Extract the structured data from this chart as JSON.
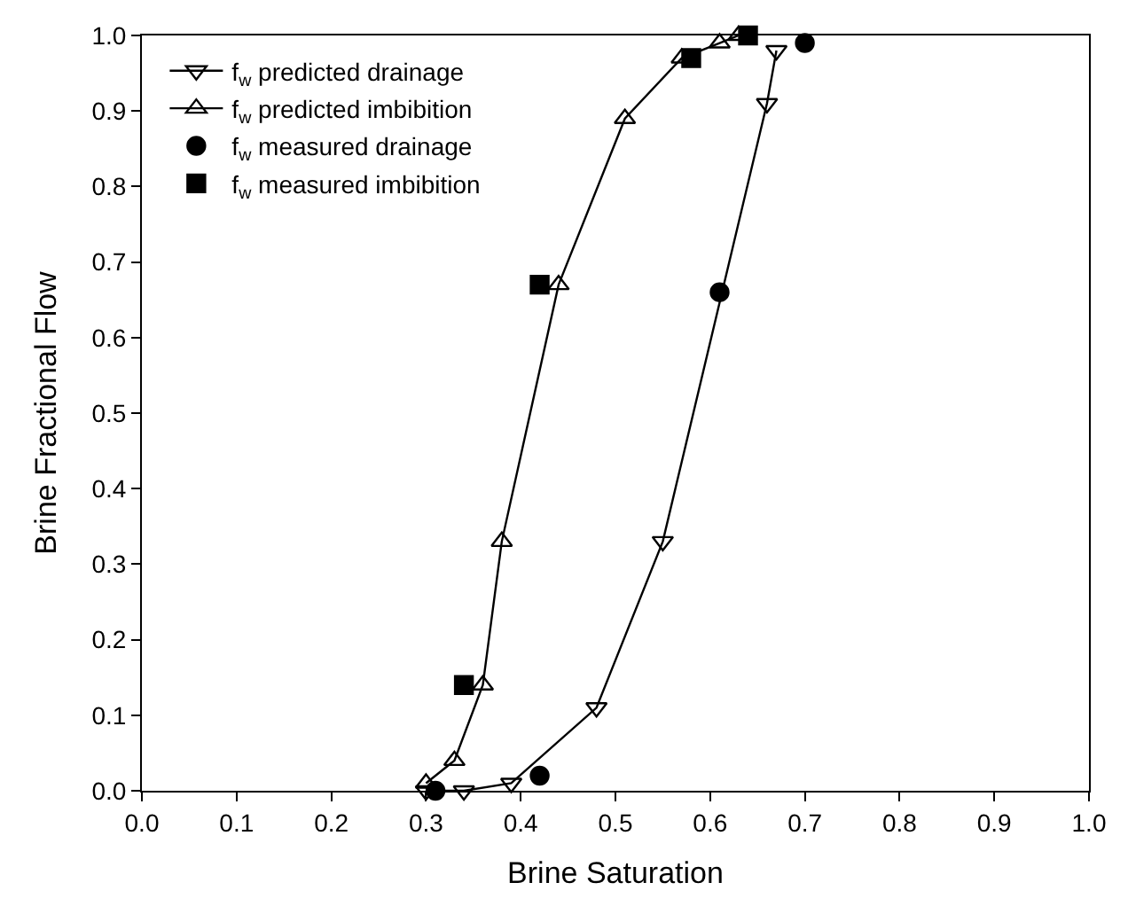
{
  "chart_data": {
    "type": "line",
    "xlabel": "Brine Saturation",
    "ylabel": "Brine Fractional Flow",
    "xlim": [
      0,
      1
    ],
    "ylim": [
      0,
      1
    ],
    "xticks": [
      {
        "value": 0,
        "label": "0.0"
      },
      0.1,
      0.2,
      0.3,
      0.4,
      0.5,
      0.6,
      0.7,
      0.8,
      0.9,
      {
        "value": 1,
        "label": "1.0"
      }
    ],
    "yticks": [
      {
        "value": 0,
        "label": "0.0"
      },
      0.1,
      0.2,
      0.3,
      0.4,
      0.5,
      0.6,
      0.7,
      0.8,
      0.9,
      {
        "value": 1,
        "label": "1.0"
      }
    ],
    "legend": "top left",
    "series": [
      {
        "name": "f$_{w}$ predicted drainage",
        "marker": "triangle-down",
        "color": "#000000",
        "x": [
          0.3,
          0.34,
          0.39,
          0.48,
          0.55,
          0.66,
          0.67
        ],
        "values": [
          0.0,
          0.0,
          0.01,
          0.11,
          0.33,
          0.91,
          0.98
        ]
      },
      {
        "name": "f$_{w}$ predicted imbibition",
        "marker": "triangle",
        "color": "#000000",
        "x": [
          0.3,
          0.33,
          0.36,
          0.38,
          0.44,
          0.51,
          0.57,
          0.61,
          0.63
        ],
        "values": [
          0.01,
          0.04,
          0.14,
          0.33,
          0.67,
          0.89,
          0.97,
          0.99,
          1.0
        ]
      },
      {
        "name": "f$_{w}$ measured drainage",
        "type": "scatter",
        "marker": "circle",
        "color": "#000000",
        "x": [
          0.31,
          0.42,
          0.61,
          0.7
        ],
        "values": [
          0.0,
          0.02,
          0.66,
          0.99
        ]
      },
      {
        "name": "f$_{w}$ measured imbibition",
        "type": "scatter",
        "marker": "square",
        "color": "#000000",
        "x": [
          0.34,
          0.42,
          0.58,
          0.64
        ],
        "values": [
          0.14,
          0.67,
          0.97,
          1.0
        ]
      }
    ]
  }
}
